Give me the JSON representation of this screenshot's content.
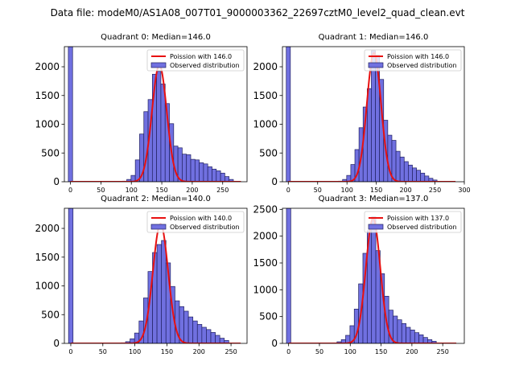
{
  "figure": {
    "suptitle": "Data file: modeM0/AS1A08_007T01_9000003362_22697cztM0_level2_quad_clean.evt"
  },
  "colors": {
    "bar_fill": "#7070e0",
    "bar_edge": "#202060",
    "poisson_line": "#e81010",
    "axes": "#000000"
  },
  "chart_data": [
    {
      "type": "bar",
      "title": "Quadrant 0: Median=146.0",
      "median": 146.0,
      "xlim": [
        -10,
        290
      ],
      "ylim": [
        0,
        2350
      ],
      "xticks": [
        0,
        50,
        100,
        150,
        200,
        250
      ],
      "yticks": [
        0,
        500,
        1000,
        1500,
        2000
      ],
      "bin_width": 7,
      "spike": {
        "x": 0,
        "value": 2350
      },
      "bins": [
        {
          "x": 89,
          "value": 10
        },
        {
          "x": 96,
          "value": 40
        },
        {
          "x": 103,
          "value": 110
        },
        {
          "x": 110,
          "value": 380
        },
        {
          "x": 117,
          "value": 830
        },
        {
          "x": 124,
          "value": 1220
        },
        {
          "x": 131,
          "value": 1430
        },
        {
          "x": 138,
          "value": 1870
        },
        {
          "x": 145,
          "value": 1920
        },
        {
          "x": 152,
          "value": 1700
        },
        {
          "x": 159,
          "value": 1360
        },
        {
          "x": 166,
          "value": 1010
        },
        {
          "x": 173,
          "value": 620
        },
        {
          "x": 180,
          "value": 590
        },
        {
          "x": 187,
          "value": 480
        },
        {
          "x": 194,
          "value": 470
        },
        {
          "x": 201,
          "value": 390
        },
        {
          "x": 208,
          "value": 380
        },
        {
          "x": 215,
          "value": 330
        },
        {
          "x": 222,
          "value": 310
        },
        {
          "x": 229,
          "value": 260
        },
        {
          "x": 236,
          "value": 220
        },
        {
          "x": 243,
          "value": 190
        },
        {
          "x": 250,
          "value": 150
        },
        {
          "x": 257,
          "value": 90
        },
        {
          "x": 264,
          "value": 40
        }
      ],
      "poisson": {
        "mean": 146.0,
        "peak": 2030,
        "x_range": [
          0,
          280
        ]
      },
      "legend": {
        "poisson": "Poission with 146.0",
        "observed": "Observed distribution",
        "position": "upper right"
      }
    },
    {
      "type": "bar",
      "title": "Quadrant 1: Median=146.0",
      "median": 146.0,
      "xlim": [
        -10,
        300
      ],
      "ylim": [
        0,
        2350
      ],
      "xticks": [
        0,
        50,
        100,
        150,
        200,
        250,
        300
      ],
      "yticks": [
        0,
        500,
        1000,
        1500,
        2000
      ],
      "bin_width": 7,
      "spike": {
        "x": 0,
        "value": 2350
      },
      "bins": [
        {
          "x": 89,
          "value": 10
        },
        {
          "x": 96,
          "value": 40
        },
        {
          "x": 103,
          "value": 110
        },
        {
          "x": 110,
          "value": 300
        },
        {
          "x": 117,
          "value": 560
        },
        {
          "x": 124,
          "value": 940
        },
        {
          "x": 131,
          "value": 1300
        },
        {
          "x": 138,
          "value": 1620
        },
        {
          "x": 145,
          "value": 2280
        },
        {
          "x": 152,
          "value": 2200
        },
        {
          "x": 159,
          "value": 1780
        },
        {
          "x": 166,
          "value": 1070
        },
        {
          "x": 173,
          "value": 810
        },
        {
          "x": 180,
          "value": 720
        },
        {
          "x": 187,
          "value": 530
        },
        {
          "x": 194,
          "value": 430
        },
        {
          "x": 201,
          "value": 350
        },
        {
          "x": 208,
          "value": 290
        },
        {
          "x": 215,
          "value": 240
        },
        {
          "x": 222,
          "value": 200
        },
        {
          "x": 229,
          "value": 150
        },
        {
          "x": 236,
          "value": 100
        },
        {
          "x": 243,
          "value": 60
        },
        {
          "x": 250,
          "value": 30
        }
      ],
      "poisson": {
        "mean": 146.0,
        "peak": 2240,
        "x_range": [
          0,
          285
        ]
      },
      "legend": {
        "poisson": "Poission with 146.0",
        "observed": "Observed distribution",
        "position": "upper right"
      }
    },
    {
      "type": "bar",
      "title": "Quadrant 2: Median=140.0",
      "median": 140.0,
      "xlim": [
        -10,
        275
      ],
      "ylim": [
        0,
        2350
      ],
      "xticks": [
        0,
        50,
        100,
        150,
        200,
        250
      ],
      "yticks": [
        0,
        500,
        1000,
        1500,
        2000
      ],
      "bin_width": 7,
      "spike": {
        "x": 0,
        "value": 2350
      },
      "bins": [
        {
          "x": 82,
          "value": 10
        },
        {
          "x": 89,
          "value": 30
        },
        {
          "x": 96,
          "value": 80
        },
        {
          "x": 103,
          "value": 180
        },
        {
          "x": 110,
          "value": 390
        },
        {
          "x": 117,
          "value": 790
        },
        {
          "x": 124,
          "value": 1250
        },
        {
          "x": 131,
          "value": 1580
        },
        {
          "x": 138,
          "value": 1720
        },
        {
          "x": 145,
          "value": 1790
        },
        {
          "x": 152,
          "value": 1400
        },
        {
          "x": 159,
          "value": 990
        },
        {
          "x": 166,
          "value": 740
        },
        {
          "x": 173,
          "value": 640
        },
        {
          "x": 180,
          "value": 560
        },
        {
          "x": 187,
          "value": 460
        },
        {
          "x": 194,
          "value": 390
        },
        {
          "x": 201,
          "value": 330
        },
        {
          "x": 208,
          "value": 280
        },
        {
          "x": 215,
          "value": 240
        },
        {
          "x": 222,
          "value": 190
        },
        {
          "x": 229,
          "value": 140
        },
        {
          "x": 236,
          "value": 90
        },
        {
          "x": 243,
          "value": 50
        }
      ],
      "poisson": {
        "mean": 140.0,
        "peak": 2080,
        "x_range": [
          0,
          265
        ]
      },
      "legend": {
        "poisson": "Poission with 140.0",
        "observed": "Observed distribution",
        "position": "upper right"
      }
    },
    {
      "type": "bar",
      "title": "Quadrant 3: Median=137.0",
      "median": 137.0,
      "xlim": [
        -10,
        285
      ],
      "ylim": [
        0,
        2520
      ],
      "xticks": [
        0,
        50,
        100,
        150,
        200,
        250
      ],
      "yticks": [
        0,
        500,
        1000,
        1500,
        2000,
        2500
      ],
      "bin_width": 7,
      "spike": {
        "x": 0,
        "value": 2520
      },
      "bins": [
        {
          "x": 75,
          "value": 10
        },
        {
          "x": 82,
          "value": 30
        },
        {
          "x": 89,
          "value": 70
        },
        {
          "x": 96,
          "value": 150
        },
        {
          "x": 103,
          "value": 330
        },
        {
          "x": 110,
          "value": 640
        },
        {
          "x": 117,
          "value": 1110
        },
        {
          "x": 124,
          "value": 1680
        },
        {
          "x": 131,
          "value": 2100
        },
        {
          "x": 138,
          "value": 2360
        },
        {
          "x": 145,
          "value": 1730
        },
        {
          "x": 152,
          "value": 1300
        },
        {
          "x": 159,
          "value": 880
        },
        {
          "x": 166,
          "value": 620
        },
        {
          "x": 173,
          "value": 510
        },
        {
          "x": 180,
          "value": 440
        },
        {
          "x": 187,
          "value": 370
        },
        {
          "x": 194,
          "value": 300
        },
        {
          "x": 201,
          "value": 250
        },
        {
          "x": 208,
          "value": 200
        },
        {
          "x": 215,
          "value": 160
        },
        {
          "x": 222,
          "value": 110
        },
        {
          "x": 229,
          "value": 70
        },
        {
          "x": 236,
          "value": 40
        }
      ],
      "poisson": {
        "mean": 137.0,
        "peak": 2330,
        "x_range": [
          0,
          272
        ]
      },
      "legend": {
        "poisson": "Poission with 137.0",
        "observed": "Observed distribution",
        "position": "upper right"
      }
    }
  ]
}
